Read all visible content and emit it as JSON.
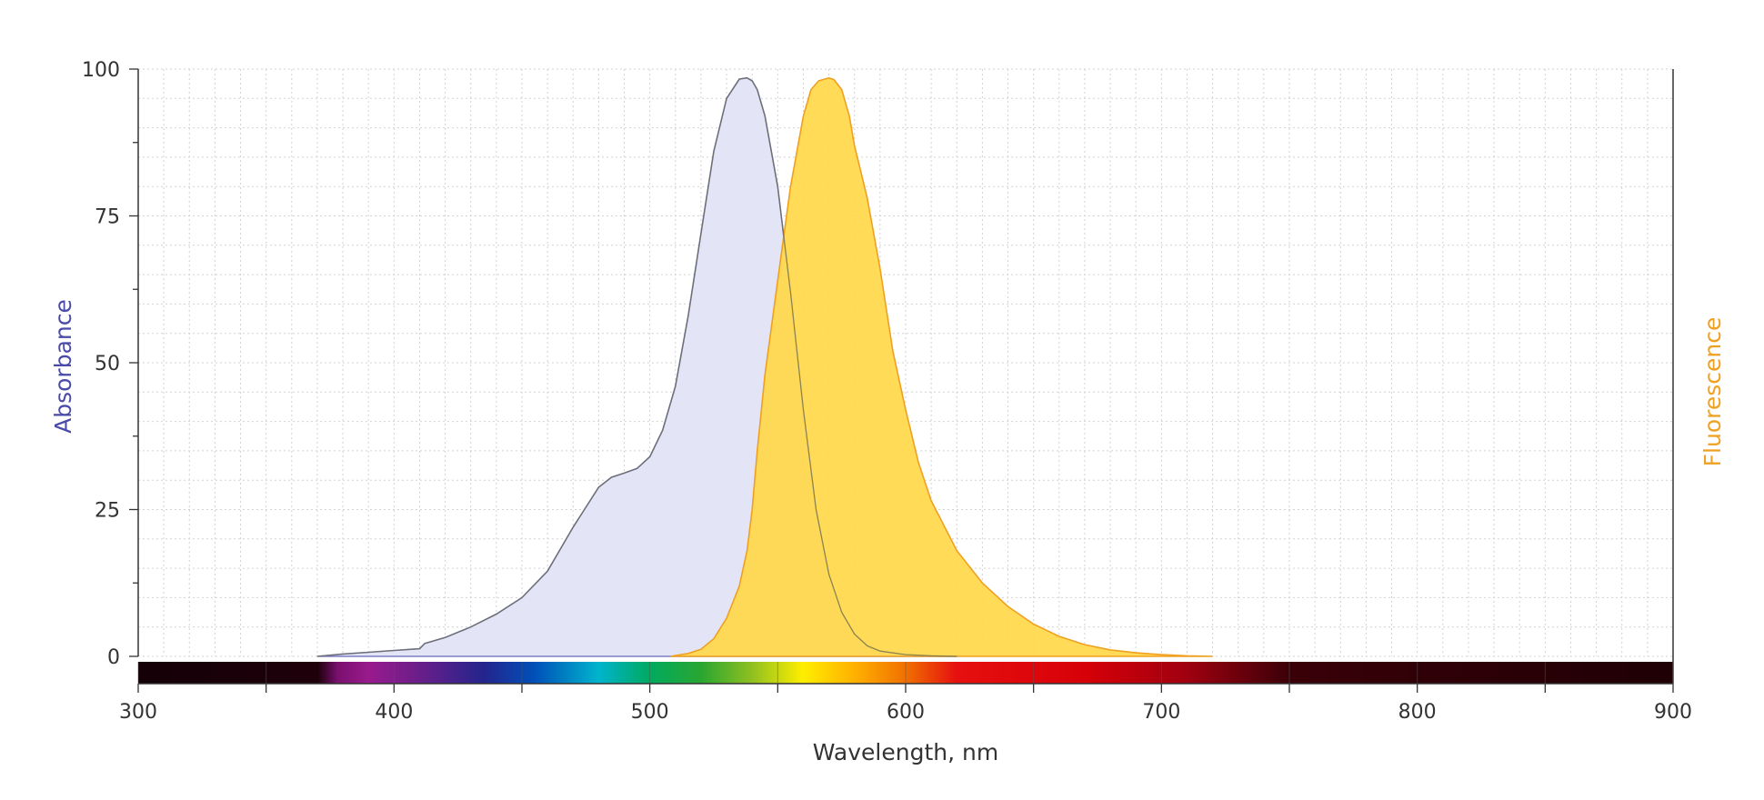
{
  "chart_data": {
    "type": "area",
    "xlabel": "Wavelength, nm",
    "ylabel": "Absorbance",
    "y2label": "Fluorescence",
    "xlim": [
      300,
      900
    ],
    "ylim": [
      0,
      100
    ],
    "x_ticks": [
      300,
      400,
      500,
      600,
      700,
      800,
      900
    ],
    "y_ticks": [
      0,
      25,
      50,
      75,
      100
    ],
    "grid": true,
    "colors": {
      "absorbance_line": "#7b7fc4",
      "absorbance_fill": "#e2e4f6",
      "fluorescence_line": "#f0a020",
      "fluorescence_fill": "#ffd84a",
      "ylabel": "#4a4aa8",
      "y2label": "#f0a020"
    },
    "series": [
      {
        "id": "absorbance",
        "x": [
          370,
          380,
          390,
          400,
          410,
          412,
          420,
          430,
          440,
          450,
          460,
          470,
          480,
          485,
          490,
          495,
          500,
          505,
          510,
          515,
          520,
          525,
          530,
          535,
          538,
          540,
          542,
          545,
          550,
          555,
          560,
          565,
          570,
          575,
          580,
          585,
          590,
          600,
          610,
          620
        ],
        "y": [
          0,
          0.4,
          0.7,
          1.0,
          1.3,
          2.2,
          3.2,
          5.0,
          7.2,
          10.0,
          14.5,
          22.0,
          28.8,
          30.5,
          31.2,
          32.0,
          34.0,
          38.5,
          46.0,
          58.0,
          72.0,
          86.0,
          95.0,
          98.3,
          98.5,
          98.0,
          96.5,
          92.0,
          80.0,
          62.0,
          42.0,
          25.0,
          14.0,
          7.5,
          3.8,
          1.8,
          0.9,
          0.3,
          0.1,
          0
        ]
      },
      {
        "id": "fluorescence",
        "x": [
          508,
          515,
          520,
          525,
          530,
          535,
          538,
          540,
          542,
          545,
          550,
          555,
          560,
          563,
          566,
          570,
          572,
          575,
          578,
          580,
          585,
          590,
          595,
          600,
          605,
          610,
          620,
          630,
          640,
          650,
          660,
          670,
          680,
          690,
          700,
          710,
          720
        ],
        "y": [
          0,
          0.5,
          1.2,
          3.0,
          6.5,
          12.0,
          18.0,
          25.0,
          35.0,
          48.0,
          64.0,
          80.0,
          92.0,
          96.5,
          98.0,
          98.5,
          98.2,
          96.5,
          92.0,
          87.0,
          78.0,
          66.0,
          52.0,
          42.0,
          33.0,
          26.5,
          18.0,
          12.5,
          8.5,
          5.5,
          3.4,
          2.0,
          1.1,
          0.6,
          0.3,
          0.1,
          0
        ]
      }
    ]
  }
}
